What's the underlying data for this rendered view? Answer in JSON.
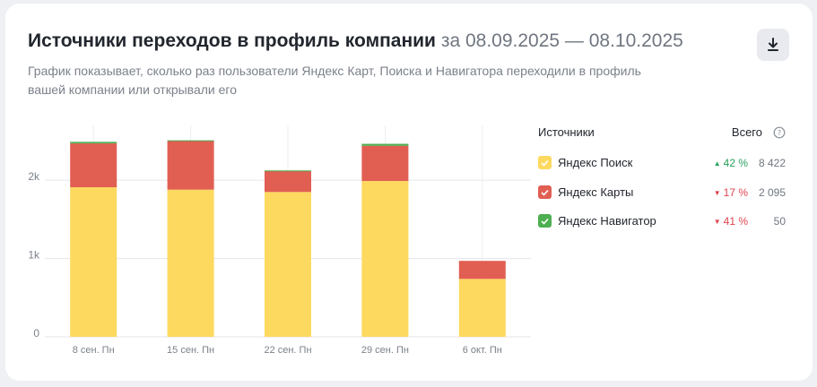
{
  "header": {
    "title": "Источники переходов в профиль компании",
    "period": "за 08.09.2025 — 08.10.2025",
    "subtitle": "График показывает, сколько раз пользователи Яндекс Карт, Поиска и Навигатора переходили в профиль вашей компании или открывали его",
    "download_icon": "download-icon"
  },
  "legend": {
    "header_label": "Источники",
    "total_label": "Всего",
    "help_icon": "question-circle-icon",
    "items": [
      {
        "name": "Яндекс Поиск",
        "color": "#fdd95f",
        "trend": "up",
        "change": "42 %",
        "total": "8 422"
      },
      {
        "name": "Яндекс Карты",
        "color": "#e15e52",
        "trend": "down",
        "change": "17 %",
        "total": "2 095"
      },
      {
        "name": "Яндекс Навигатор",
        "color": "#4caf50",
        "trend": "down",
        "change": "41 %",
        "total": "50"
      }
    ]
  },
  "chart_data": {
    "type": "bar",
    "stacked": true,
    "categories": [
      "8 сен. Пн",
      "15 сен. Пн",
      "22 сен. Пн",
      "29 сен. Пн",
      "6 окт. Пн"
    ],
    "series": [
      {
        "name": "Яндекс Поиск",
        "color": "#fdd95f",
        "values": [
          1910,
          1880,
          1850,
          1990,
          740
        ]
      },
      {
        "name": "Яндекс Карты",
        "color": "#e15e52",
        "values": [
          560,
          620,
          270,
          450,
          230
        ]
      },
      {
        "name": "Яндекс Навигатор",
        "color": "#4caf50",
        "values": [
          20,
          10,
          5,
          25,
          0
        ]
      }
    ],
    "yticks": [
      0,
      1000,
      2000
    ],
    "ytick_labels": [
      "0",
      "1k",
      "2k"
    ],
    "ylim": [
      0,
      2700
    ],
    "grid": true
  }
}
